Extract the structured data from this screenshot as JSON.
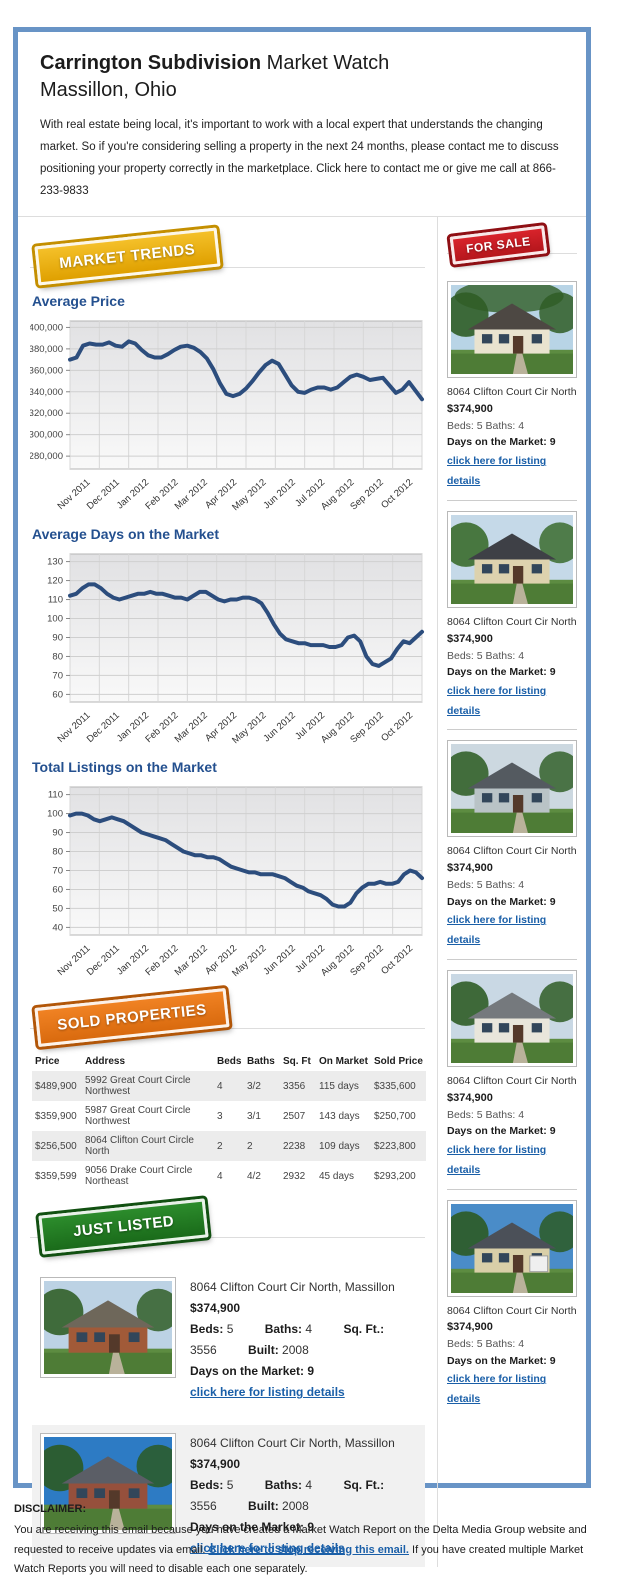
{
  "header": {
    "title_strong": "Carrington Subdivision",
    "title_rest": " Market Watch",
    "subtitle": "Massillon, Ohio",
    "intro": "With real estate being local, it's important to work with a local expert that understands the changing market. So if you're considering selling a property in the next 24 months, please contact me to discuss positioning your property correctly in the marketplace. Click here to contact me or give me call at 866-233-9833"
  },
  "market_trends": {
    "badge": "MARKET TRENDS"
  },
  "chart_data": [
    {
      "type": "line",
      "title": "Average Price",
      "x_labels": [
        "Nov 2011",
        "Dec 2011",
        "Jan 2012",
        "Feb 2012",
        "Mar 2012",
        "Apr 2012",
        "May 2012",
        "Jun 2012",
        "Jul 2012",
        "Aug 2012",
        "Sep 2012",
        "Oct 2012"
      ],
      "ylim": [
        268000,
        406000
      ],
      "yticks": [
        280000,
        300000,
        320000,
        340000,
        360000,
        380000,
        400000
      ],
      "ytick_labels": [
        "$280,000",
        "$300,000",
        "$320,000",
        "$340,000",
        "$360,000",
        "$380,000",
        "$400,000"
      ],
      "line_color": "#2c4d7d",
      "grid": true,
      "values": [
        370000,
        372000,
        383000,
        385000,
        384000,
        384000,
        386000,
        383000,
        382000,
        387000,
        385000,
        379000,
        374000,
        372000,
        372000,
        375000,
        379000,
        382000,
        383000,
        381000,
        377000,
        371000,
        361000,
        348000,
        338000,
        336000,
        338000,
        343000,
        350000,
        358000,
        365000,
        369000,
        366000,
        356000,
        346000,
        340000,
        339000,
        342000,
        344000,
        344000,
        342000,
        344000,
        349000,
        354000,
        356000,
        354000,
        351000,
        352000,
        353000,
        346000,
        339000,
        342000,
        349000,
        341000,
        333000
      ]
    },
    {
      "type": "line",
      "title": "Average Days on the Market",
      "x_labels": [
        "Nov 2011",
        "Dec 2011",
        "Jan 2012",
        "Feb 2012",
        "Mar 2012",
        "Apr 2012",
        "May 2012",
        "Jun 2012",
        "Jul 2012",
        "Aug 2012",
        "Sep 2012",
        "Oct 2012"
      ],
      "ylim": [
        56,
        134
      ],
      "yticks": [
        60,
        70,
        80,
        90,
        100,
        110,
        120,
        130
      ],
      "ytick_labels": [
        "60",
        "70",
        "80",
        "90",
        "100",
        "110",
        "120",
        "130"
      ],
      "line_color": "#2c4d7d",
      "grid": true,
      "values": [
        112,
        113,
        116,
        118,
        118,
        116,
        113,
        111,
        110,
        111,
        112,
        113,
        113,
        114,
        113,
        113,
        112,
        111,
        111,
        110,
        112,
        114,
        114,
        112,
        110,
        109,
        110,
        110,
        111,
        111,
        110,
        108,
        103,
        97,
        92,
        89,
        88,
        87,
        87,
        86,
        86,
        86,
        85,
        85,
        86,
        90,
        91,
        88,
        80,
        76,
        75,
        77,
        79,
        84,
        88,
        87,
        90,
        93
      ]
    },
    {
      "type": "line",
      "title": "Total Listings on the Market",
      "x_labels": [
        "Nov 2011",
        "Dec 2011",
        "Jan 2012",
        "Feb 2012",
        "Mar 2012",
        "Apr 2012",
        "May 2012",
        "Jun 2012",
        "Jul 2012",
        "Aug 2012",
        "Sep 2012",
        "Oct 2012"
      ],
      "ylim": [
        36,
        114
      ],
      "yticks": [
        40,
        50,
        60,
        70,
        80,
        90,
        100,
        110
      ],
      "ytick_labels": [
        "40",
        "50",
        "60",
        "70",
        "80",
        "90",
        "100",
        "110"
      ],
      "line_color": "#2c4d7d",
      "grid": true,
      "values": [
        99,
        100,
        100,
        99,
        97,
        96,
        97,
        98,
        97,
        96,
        94,
        92,
        90,
        89,
        88,
        87,
        86,
        84,
        82,
        80,
        79,
        78,
        78,
        77,
        77,
        76,
        74,
        72,
        71,
        70,
        69,
        69,
        68,
        68,
        68,
        67,
        66,
        64,
        62,
        61,
        59,
        58,
        57,
        55,
        52,
        51,
        51,
        53,
        58,
        61,
        63,
        63,
        64,
        63,
        63,
        64,
        68,
        70,
        69,
        66
      ]
    }
  ],
  "forsale": {
    "badge": "FOR SALE",
    "listings": [
      {
        "address": "8064 Clifton Court Cir North",
        "price": "$374,900",
        "beds_baths": "Beds: 5 Baths: 4",
        "days": "Days on the Market: 9",
        "link": "click here for listing details"
      },
      {
        "address": "8064 Clifton Court Cir North",
        "price": "$374,900",
        "beds_baths": "Beds: 5 Baths: 4",
        "days": "Days on the Market: 9",
        "link": "click here for listing details"
      },
      {
        "address": "8064 Clifton Court Cir North",
        "price": "$374,900",
        "beds_baths": "Beds: 5 Baths: 4",
        "days": "Days on the Market: 9",
        "link": "click here for listing details"
      },
      {
        "address": "8064 Clifton Court Cir North",
        "price": "$374,900",
        "beds_baths": "Beds: 5 Baths: 4",
        "days": "Days on the Market: 9",
        "link": "click here for listing details"
      },
      {
        "address": "8064 Clifton Court Cir North",
        "price": "$374,900",
        "beds_baths": "Beds: 5 Baths: 4",
        "days": "Days on the Market: 9",
        "link": "click here for listing details"
      }
    ]
  },
  "sold": {
    "badge": "SOLD PROPERTIES",
    "headers": [
      "Price",
      "Address",
      "Beds",
      "Baths",
      "Sq. Ft",
      "On Market",
      "Sold Price"
    ],
    "rows": [
      {
        "price": "$489,900",
        "address": "5992 Great Court Circle Northwest",
        "beds": "4",
        "baths": "3/2",
        "sqft": "3356",
        "on_market": "115 days",
        "sold_price": "$335,600"
      },
      {
        "price": "$359,900",
        "address": "5987 Great Court Circle Northwest",
        "beds": "3",
        "baths": "3/1",
        "sqft": "2507",
        "on_market": "143 days",
        "sold_price": "$250,700"
      },
      {
        "price": "$256,500",
        "address": "8064 Clifton Court Circle North",
        "beds": "2",
        "baths": "2",
        "sqft": "2238",
        "on_market": "109 days",
        "sold_price": "$223,800"
      },
      {
        "price": "$359,599",
        "address": "9056 Drake Court Circle Northeast",
        "beds": "4",
        "baths": "4/2",
        "sqft": "2932",
        "on_market": "45 days",
        "sold_price": "$293,200"
      }
    ]
  },
  "just_listed": {
    "badge": "JUST LISTED",
    "listings": [
      {
        "address": "8064 Clifton Court Cir North, Massillon",
        "price": "$374,900",
        "beds_label": "Beds:",
        "beds": "5",
        "baths_label": "Baths:",
        "baths": "4",
        "sqft_label": "Sq. Ft.:",
        "sqft": "3556",
        "built_label": "Built:",
        "built": "2008",
        "days": "Days on the Market: 9",
        "link": "click here for listing details"
      },
      {
        "address": "8064 Clifton Court Cir North, Massillon",
        "price": "$374,900",
        "beds_label": "Beds:",
        "beds": "5",
        "baths_label": "Baths:",
        "baths": "4",
        "sqft_label": "Sq. Ft.:",
        "sqft": "3556",
        "built_label": "Built:",
        "built": "2008",
        "days": "Days on the Market: 9",
        "link": "click here for listing details"
      }
    ]
  },
  "footer": {
    "heading": "DISCLAIMER:",
    "text_before": "You are receiving this email because you have created a Market Watch Report on the Delta Media Group website and requested to receive updates via email. ",
    "link": "Click here to stop receiving this email.",
    "text_after": " If you have created multiple Market Watch Reports you will need to disable each one separately."
  },
  "colors": {
    "frame_blue": "#6894c6",
    "heading_blue": "#24508f",
    "chart_line_navy": "#2c4d7d",
    "link_blue": "#1a5fa8",
    "badge_gold": "#eeaf00",
    "badge_red": "#c4161c",
    "badge_orange": "#e87511",
    "badge_green": "#1e7a1e"
  }
}
